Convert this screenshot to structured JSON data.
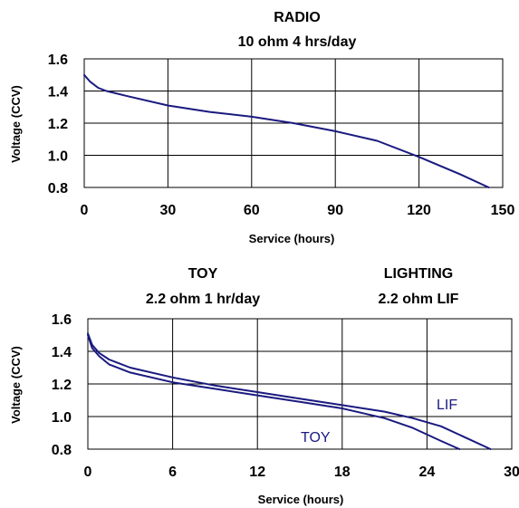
{
  "chart_data": [
    {
      "type": "line",
      "title": "RADIO",
      "subtitle": "10 ohm 4 hrs/day",
      "xlabel": "Service (hours)",
      "ylabel": "Voltage (CCV)",
      "xlim": [
        0,
        150
      ],
      "ylim": [
        0.8,
        1.6
      ],
      "xticks": [
        "0",
        "30",
        "60",
        "90",
        "120",
        "150"
      ],
      "yticks": [
        "0.8",
        "1.0",
        "1.2",
        "1.4",
        "1.6"
      ],
      "grid": true,
      "line_color": "#1a1a80",
      "series": [
        {
          "x": [
            0,
            2,
            5,
            8,
            15,
            30,
            45,
            60,
            75,
            90,
            105,
            120,
            135,
            145
          ],
          "y": [
            1.5,
            1.46,
            1.42,
            1.4,
            1.37,
            1.31,
            1.27,
            1.24,
            1.2,
            1.15,
            1.09,
            0.99,
            0.88,
            0.8
          ]
        }
      ]
    },
    {
      "type": "line",
      "title": "TOY",
      "subtitle": "2.2 ohm 1 hr/day",
      "title2": "LIGHTING",
      "subtitle2": "2.2 ohm LIF",
      "xlabel": "Service (hours)",
      "ylabel": "Voltage (CCV)",
      "xlim": [
        0,
        30
      ],
      "ylim": [
        0.8,
        1.6
      ],
      "xticks": [
        "0",
        "6",
        "12",
        "18",
        "24",
        "30"
      ],
      "yticks": [
        "0.8",
        "1.0",
        "1.2",
        "1.4",
        "1.6"
      ],
      "grid": true,
      "line_color": "#1a1a80",
      "series": [
        {
          "name": "TOY",
          "x": [
            0,
            0.3,
            0.8,
            1.5,
            3,
            6,
            9,
            12,
            15,
            18,
            21,
            23,
            25,
            26.3
          ],
          "y": [
            1.5,
            1.42,
            1.37,
            1.32,
            1.27,
            1.21,
            1.17,
            1.13,
            1.09,
            1.05,
            0.99,
            0.93,
            0.85,
            0.8
          ]
        },
        {
          "name": "LIF",
          "x": [
            0,
            0.3,
            0.8,
            1.5,
            3,
            6,
            9,
            12,
            15,
            18,
            21,
            23,
            25,
            27,
            28.5
          ],
          "y": [
            1.51,
            1.44,
            1.39,
            1.35,
            1.3,
            1.24,
            1.19,
            1.15,
            1.11,
            1.07,
            1.03,
            0.99,
            0.94,
            0.86,
            0.8
          ]
        }
      ]
    }
  ]
}
